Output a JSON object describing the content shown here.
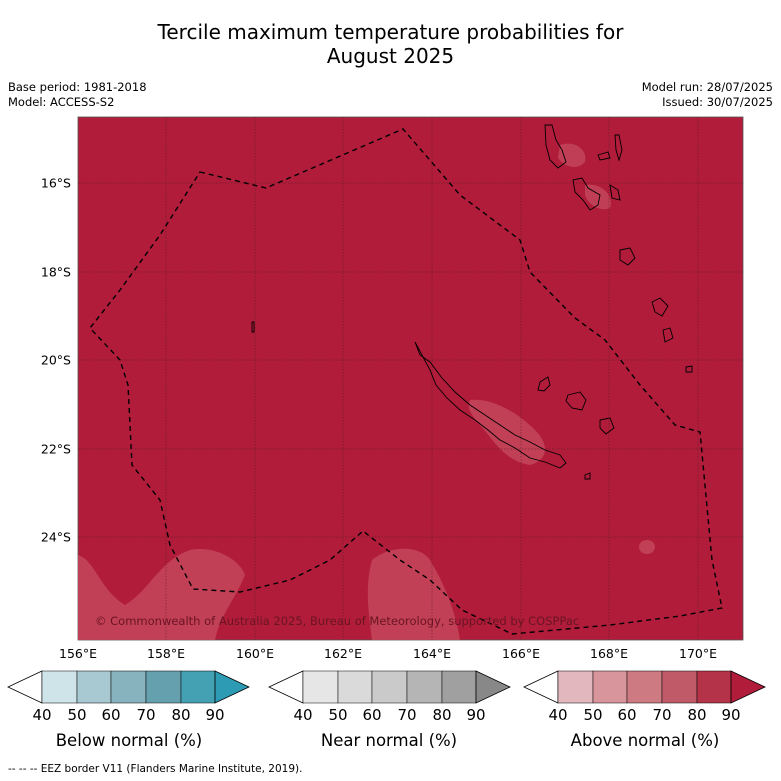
{
  "title_line1": "Tercile maximum temperature probabilities for",
  "title_line2": "August 2025",
  "meta": {
    "base_period": "Base period: 1981-2018",
    "model": "Model: ACCESS-S2",
    "model_run": "Model run: 28/07/2025",
    "issued": "Issued: 30/07/2025"
  },
  "map": {
    "latitude_labels": [
      "16°S",
      "18°S",
      "20°S",
      "22°S",
      "24°S"
    ],
    "longitude_labels": [
      "156°E",
      "158°E",
      "160°E",
      "162°E",
      "164°E",
      "166°E",
      "168°E",
      "170°E"
    ],
    "dominant_category": "Above normal",
    "dominant_probability_range": "80-90",
    "fill_color": "#b01c3a",
    "copyright": "© Commonwealth of Australia 2025, Bureau of Meteorology, supported by COSPPac"
  },
  "colorbars": [
    {
      "title": "Below normal (%)",
      "ticks": [
        "40",
        "50",
        "60",
        "70",
        "80",
        "90"
      ],
      "colors": [
        "#ffffff",
        "#cfe4e9",
        "#a8c9d1",
        "#86b3be",
        "#64a0ad",
        "#44a0b3",
        "#2d9bb3"
      ]
    },
    {
      "title": "Near normal (%)",
      "ticks": [
        "40",
        "50",
        "60",
        "70",
        "80",
        "90"
      ],
      "colors": [
        "#ffffff",
        "#e6e6e6",
        "#dadada",
        "#cacaca",
        "#b5b5b5",
        "#a0a0a0",
        "#888888"
      ]
    },
    {
      "title": "Above normal (%)",
      "ticks": [
        "40",
        "50",
        "60",
        "70",
        "80",
        "90"
      ],
      "colors": [
        "#ffffff",
        "#e3b7be",
        "#d9959c",
        "#cd7a82",
        "#c05a68",
        "#b53349",
        "#b01c3a"
      ]
    }
  ],
  "footnote": "--  --  -- EEZ border V11 (Flanders Marine Institute, 2019)."
}
